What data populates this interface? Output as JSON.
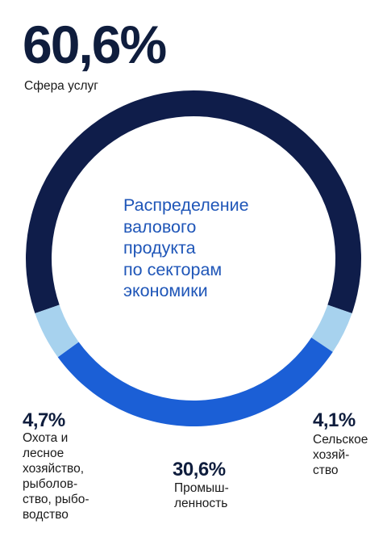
{
  "chart_data": {
    "type": "pie",
    "title": "Распределение\nвалового\nпродукта\nпо секторам\nэкономики",
    "slices": [
      {
        "value_label": "60,6%",
        "label": "Сфера услуг",
        "value": 60.6,
        "color": "#0f1d4a"
      },
      {
        "value_label": "30,6%",
        "label": "Промыш-\nленность",
        "value": 30.6,
        "color": "#1b5fd6"
      },
      {
        "value_label": "4,7%",
        "label": "Охота и\nлесное\nхозяйство,\nрыболов-\nство, рыбо-\nводство",
        "value": 4.7,
        "color": "#a7d2ee"
      },
      {
        "value_label": "4,1%",
        "label": "Сельское\nхозяй-\nство",
        "value": 4.1,
        "color": "#a7d2ee"
      }
    ]
  }
}
